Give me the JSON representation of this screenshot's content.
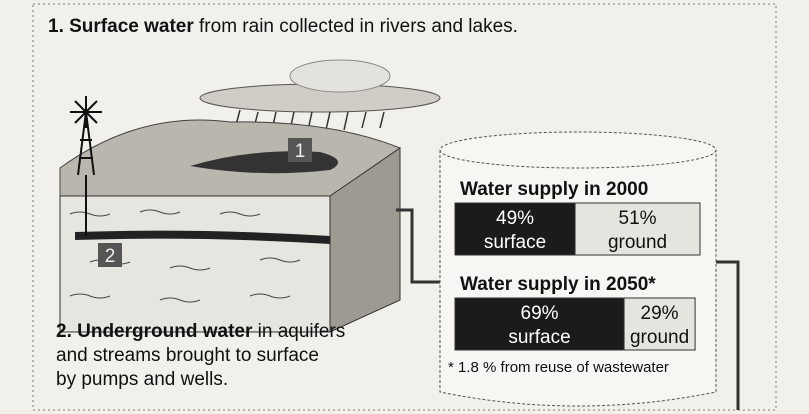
{
  "top_caption": {
    "bold": "1. Surface water",
    "rest": " from rain collected in rivers and lakes."
  },
  "markers": [
    "1",
    "2"
  ],
  "bottom_caption": {
    "bold": "2. Underground water",
    "rest": " in aquifers",
    "lines": [
      "and streams brought to surface",
      "by pumps and wells."
    ]
  },
  "supply": [
    {
      "title": "Water supply in 2000",
      "segments": [
        {
          "value": 49,
          "label": "49%",
          "name": "surface"
        },
        {
          "value": 51,
          "label": "51%",
          "name": "ground"
        }
      ]
    },
    {
      "title": "Water supply in 2050*",
      "segments": [
        {
          "value": 69,
          "label": "69%",
          "name": "surface"
        },
        {
          "value": 29,
          "label": "29%",
          "name": "ground"
        }
      ]
    }
  ],
  "footnote": "* 1.8 % from reuse of wastewater"
}
